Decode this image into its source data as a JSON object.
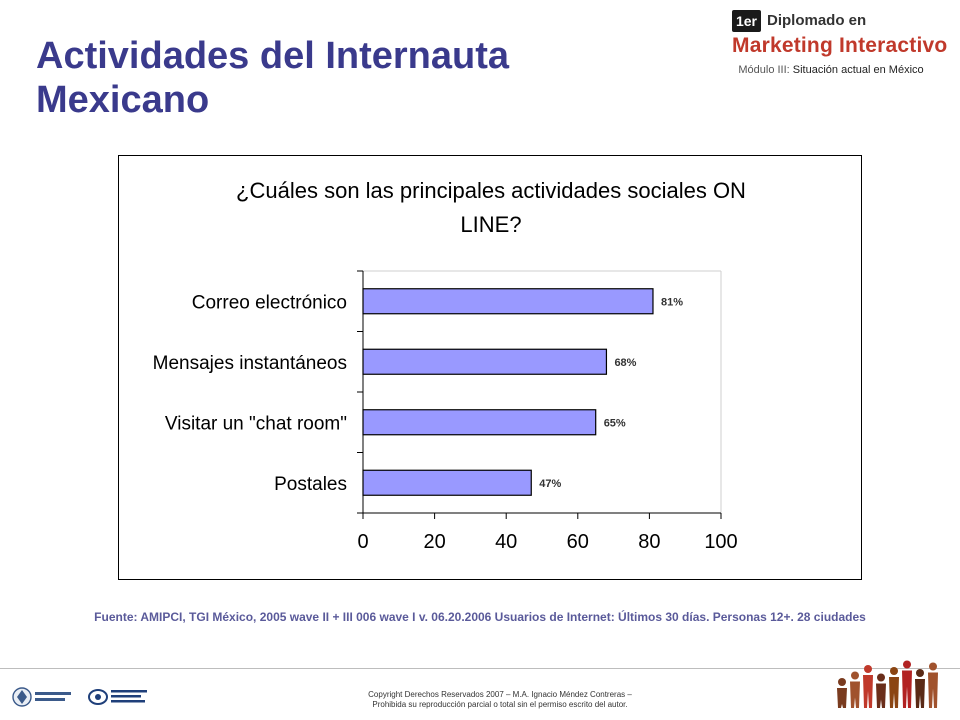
{
  "slide": {
    "title": "Actividades del Internauta Mexicano"
  },
  "brand": {
    "badge": "1er",
    "line1": "Diplomado en",
    "line2": "Marketing Interactivo",
    "module_label": "Módulo III:",
    "module_text": "Situación actual en México"
  },
  "chart_data": {
    "type": "bar",
    "orientation": "horizontal",
    "title": "¿Cuáles son las principales actividades sociales ON LINE?",
    "title_lines": [
      "¿Cuáles son las principales actividades sociales ON",
      "LINE?"
    ],
    "categories": [
      "Correo electrónico",
      "Mensajes instantáneos",
      "Visitar un \"chat room\"",
      "Postales"
    ],
    "values": [
      81,
      68,
      65,
      47
    ],
    "data_labels": [
      "81%",
      "68%",
      "65%",
      "47%"
    ],
    "xlim": [
      0,
      100
    ],
    "xticks": [
      "0",
      "20",
      "40",
      "60",
      "80",
      "100"
    ],
    "grid": false,
    "bar_color": "#9999ff"
  },
  "footer": {
    "source": "Fuente: AMIPCI, TGI México, 2005 wave II + III 006 wave I v. 06.20.2006 Usuarios de Internet: Últimos 30 días. Personas 12+. 28 ciudades",
    "copyright_line1": "Copyright Derechos Reservados 2007 – M.A. Ignacio Méndez Contreras –",
    "copyright_line2": "Prohibida su reproducción parcial o total sin el permiso escrito del autor."
  },
  "logos": {
    "left": "tecnologico-de-monterrey-logo",
    "middle": "iab-logo",
    "right": "people-figures-graphic"
  }
}
